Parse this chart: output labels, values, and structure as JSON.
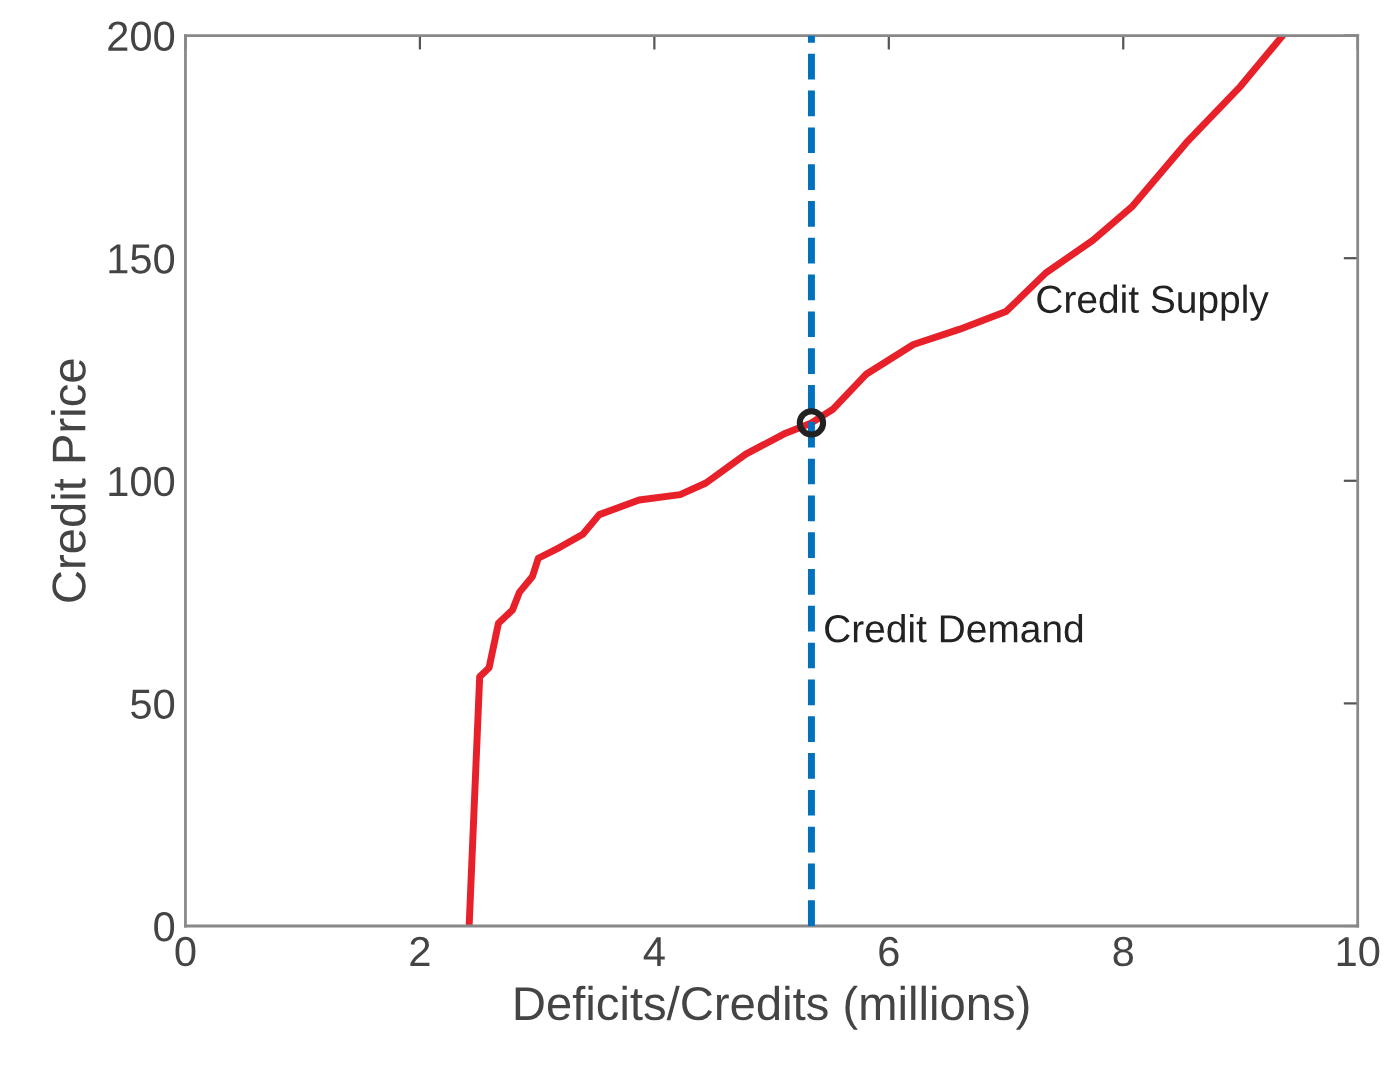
{
  "chart_data": {
    "type": "line",
    "xlabel": "Deficits/Credits (millions)",
    "ylabel": "Credit Price",
    "xlim": [
      0,
      10
    ],
    "xticks": [
      0,
      2,
      4,
      6,
      8,
      10
    ],
    "ylim": [
      0,
      200
    ],
    "yticks": [
      0,
      50,
      100,
      150,
      200
    ],
    "grid": false,
    "series": [
      {
        "color": "#e8202a",
        "line_style": "solid",
        "marker": "none",
        "x": [
          2.42,
          2.51,
          2.59,
          2.67,
          2.79,
          2.85,
          2.96,
          3.01,
          3.19,
          3.39,
          3.53,
          3.87,
          4.22,
          4.44,
          4.78,
          5.12,
          5.34,
          5.52,
          5.81,
          6.21,
          6.6,
          7.0,
          7.34,
          7.74,
          8.08,
          8.54,
          9.0,
          9.36
        ],
        "values": [
          0,
          56,
          58,
          68,
          71,
          75,
          78.5,
          82.6,
          85,
          88,
          92.4,
          95.7,
          96.9,
          99.5,
          106,
          110.7,
          113,
          116,
          124,
          130.6,
          134,
          138,
          146.7,
          154,
          161.7,
          176,
          188.6,
          200
        ]
      },
      {
        "type": "scatter",
        "color": "#222222",
        "marker": "circle",
        "x": [
          5.34
        ],
        "values": [
          113
        ]
      }
    ],
    "ref_lines": [
      {
        "axis": "x",
        "value": 5.34,
        "label": "Credit Demand",
        "color": "#0072bd",
        "line_style": "dashed"
      }
    ],
    "annotations": [
      "Credit Supply"
    ]
  }
}
